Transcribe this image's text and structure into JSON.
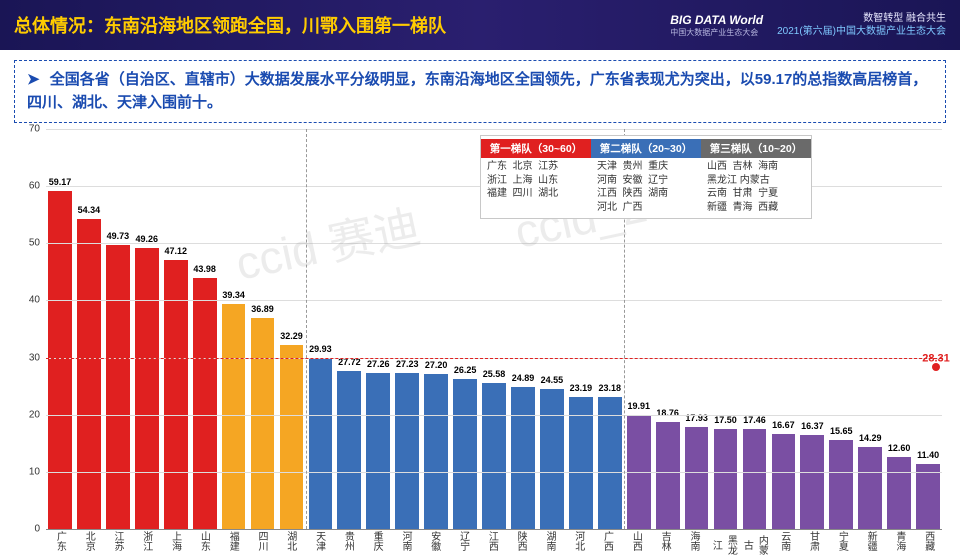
{
  "header": {
    "title": "总体情况：东南沿海地区领跑全国，川鄂入围第一梯队",
    "logo_main": "BIG DATA World",
    "logo_sub": "中国大数据产业生态大会",
    "slogan": "数智转型  融合共生",
    "conference": "2021(第六届)中国大数据产业生态大会"
  },
  "description": "全国各省（自治区、直辖市）大数据发展水平分级明显，东南沿海地区全国领先，广东省表现尤为突出，以59.17的总指数高居榜首，四川、湖北、天津入围前十。",
  "chart": {
    "ylim": [
      0,
      70
    ],
    "ytick_step": 10,
    "grid_color": "#dddddd",
    "dash_value": 30,
    "dash_color": "#e02020",
    "final_point": {
      "value": 28.31,
      "color": "#e02020"
    },
    "tiers": [
      {
        "name": "第一梯队（30~60）",
        "head_color": "#e02020",
        "provinces": "广东  北京  江苏\n浙江  上海  山东\n福建  四川  湖北"
      },
      {
        "name": "第二梯队（20~30）",
        "head_color": "#3a6fb7",
        "provinces": "天津  贵州  重庆\n河南  安徽  辽宁\n江西  陕西  湖南\n河北  广西"
      },
      {
        "name": "第三梯队（10~20）",
        "head_color": "#6a6a6a",
        "provinces": "山西  吉林  海南\n黑龙江 内蒙古\n云南  甘肃  宁夏\n新疆  青海  西藏"
      }
    ],
    "tier_colors": {
      "1": "#e02020",
      "1b": "#f5a623",
      "2": "#3a6fb7",
      "3": "#7a4fa3"
    },
    "bars": [
      {
        "name": "广东",
        "value": 59.17,
        "color": "#e02020"
      },
      {
        "name": "北京",
        "value": 54.34,
        "color": "#e02020"
      },
      {
        "name": "江苏",
        "value": 49.73,
        "color": "#e02020"
      },
      {
        "name": "浙江",
        "value": 49.26,
        "color": "#e02020"
      },
      {
        "name": "上海",
        "value": 47.12,
        "color": "#e02020"
      },
      {
        "name": "山东",
        "value": 43.98,
        "color": "#e02020"
      },
      {
        "name": "福建",
        "value": 39.34,
        "color": "#f5a623"
      },
      {
        "name": "四川",
        "value": 36.89,
        "color": "#f5a623"
      },
      {
        "name": "湖北",
        "value": 32.29,
        "color": "#f5a623"
      },
      {
        "name": "天津",
        "value": 29.93,
        "color": "#3a6fb7"
      },
      {
        "name": "贵州",
        "value": 27.72,
        "color": "#3a6fb7"
      },
      {
        "name": "重庆",
        "value": 27.26,
        "color": "#3a6fb7"
      },
      {
        "name": "河南",
        "value": 27.23,
        "color": "#3a6fb7"
      },
      {
        "name": "安徽",
        "value": 27.2,
        "color": "#3a6fb7"
      },
      {
        "name": "辽宁",
        "value": 26.25,
        "color": "#3a6fb7"
      },
      {
        "name": "江西",
        "value": 25.58,
        "color": "#3a6fb7"
      },
      {
        "name": "陕西",
        "value": 24.89,
        "color": "#3a6fb7"
      },
      {
        "name": "湖南",
        "value": 24.55,
        "color": "#3a6fb7"
      },
      {
        "name": "河北",
        "value": 23.19,
        "color": "#3a6fb7"
      },
      {
        "name": "广西",
        "value": 23.18,
        "color": "#3a6fb7"
      },
      {
        "name": "山西",
        "value": 19.91,
        "color": "#7a4fa3"
      },
      {
        "name": "吉林",
        "value": 18.76,
        "color": "#7a4fa3"
      },
      {
        "name": "海南",
        "value": 17.93,
        "color": "#7a4fa3"
      },
      {
        "name": "黑龙江",
        "value": 17.5,
        "color": "#7a4fa3"
      },
      {
        "name": "内蒙古",
        "value": 17.46,
        "color": "#7a4fa3"
      },
      {
        "name": "云南",
        "value": 16.67,
        "color": "#7a4fa3"
      },
      {
        "name": "甘肃",
        "value": 16.37,
        "color": "#7a4fa3"
      },
      {
        "name": "宁夏",
        "value": 15.65,
        "color": "#7a4fa3"
      },
      {
        "name": "新疆",
        "value": 14.29,
        "color": "#7a4fa3"
      },
      {
        "name": "青海",
        "value": 12.6,
        "color": "#7a4fa3"
      },
      {
        "name": "西藏",
        "value": 11.4,
        "color": "#7a4fa3"
      }
    ],
    "watermarks": [
      "ccid 赛迪",
      "ccid_20"
    ]
  }
}
